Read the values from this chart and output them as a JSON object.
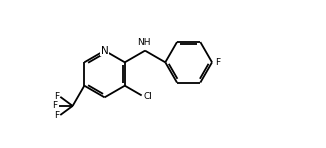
{
  "bg_color": "#ffffff",
  "line_color": "#000000",
  "lw": 1.3,
  "fs": 7.0,
  "figsize": [
    3.26,
    1.48
  ],
  "dpi": 100,
  "xlim": [
    0,
    10
  ],
  "ylim": [
    0,
    4.5
  ]
}
